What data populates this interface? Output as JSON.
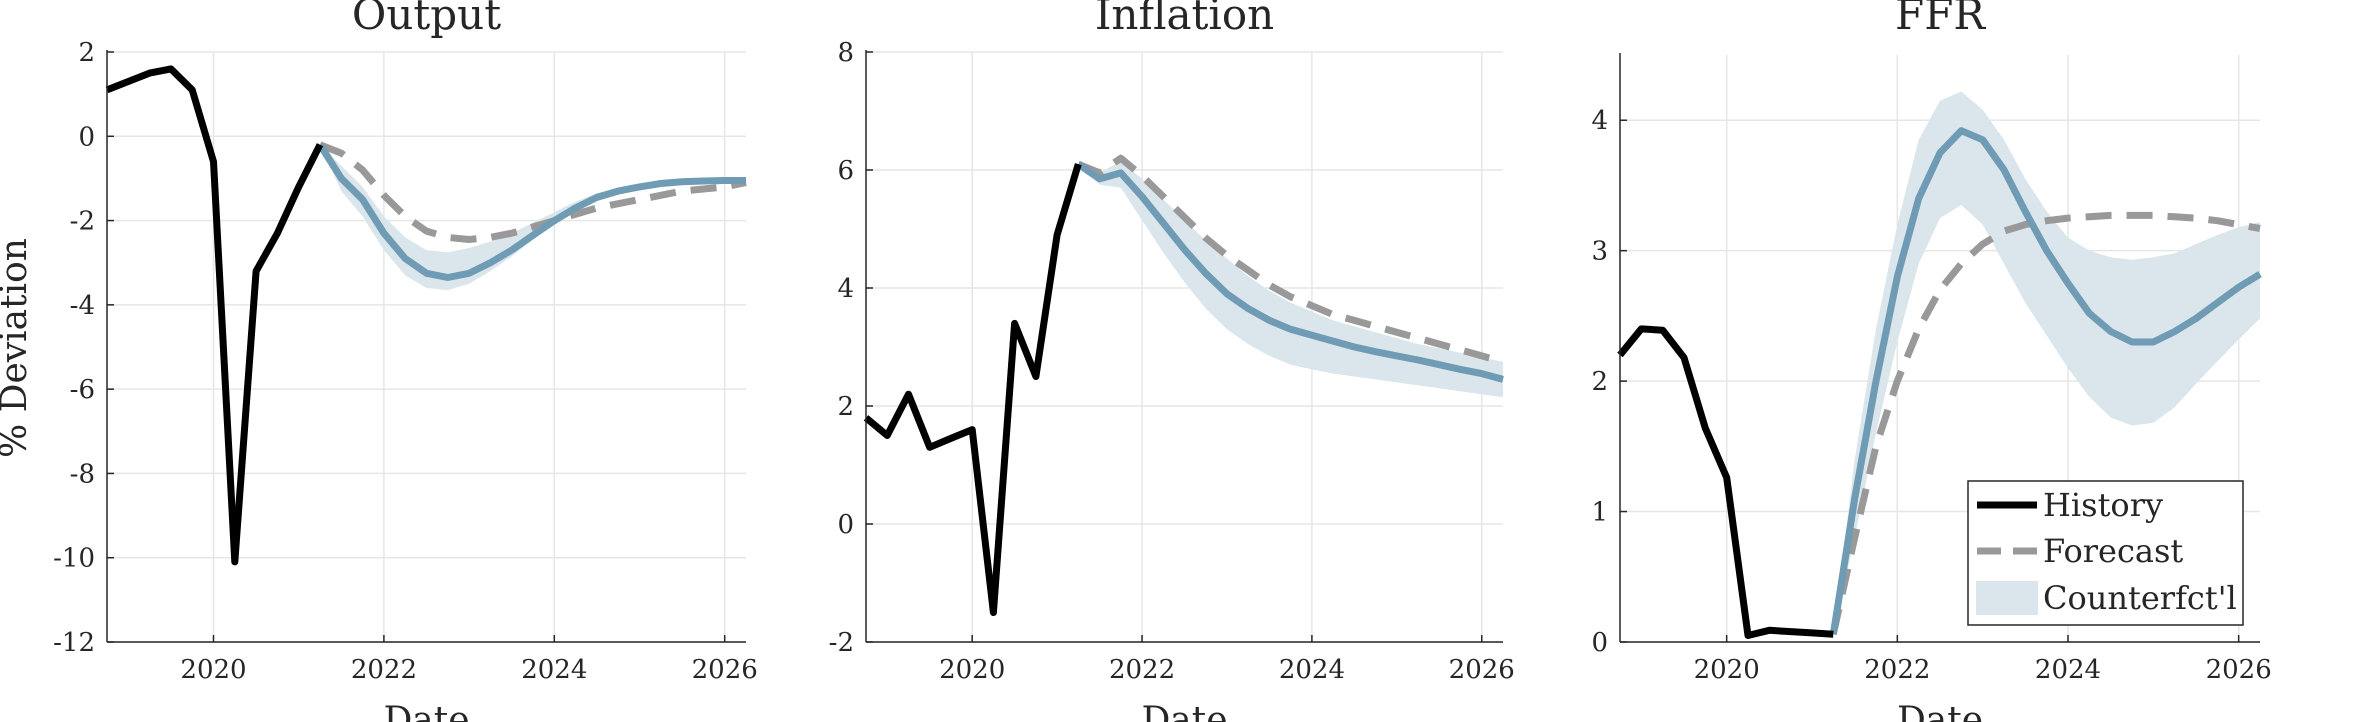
{
  "figure": {
    "ylabel": "% Deviation",
    "colors": {
      "history": "#000000",
      "forecast": "#999999",
      "counterfactual": "#6f9bb4",
      "band": "#dae6ec",
      "grid": "#e6e6e6",
      "axis": "#262626"
    }
  },
  "legend": {
    "placement": "bottom-right of FFR panel",
    "entries": [
      "History",
      "Forecast",
      "Counterfct'l"
    ]
  },
  "chart_data": [
    {
      "type": "line",
      "title": "Output",
      "xlabel": "Date",
      "ylabel": "% Deviation",
      "xlim": [
        2018.75,
        2026.25
      ],
      "ylim": [
        -12,
        2
      ],
      "xticks": [
        2020,
        2022,
        2024,
        2026
      ],
      "xtick_labels": [
        "2020",
        "2022",
        "2024",
        "2026"
      ],
      "yticks": [
        -12,
        -10,
        -8,
        -6,
        -4,
        -2,
        0,
        2
      ],
      "ytick_labels": [
        "-12",
        "-10",
        "-8",
        "-6",
        "-4",
        "-2",
        "0",
        "2"
      ],
      "grid": true,
      "series": [
        {
          "name": "History",
          "style": "solid-black",
          "x": [
            2018.75,
            2019.0,
            2019.25,
            2019.5,
            2019.75,
            2020.0,
            2020.25,
            2020.5,
            2020.75,
            2021.0,
            2021.25
          ],
          "y": [
            1.1,
            1.3,
            1.5,
            1.6,
            1.1,
            -0.6,
            -10.1,
            -3.2,
            -2.3,
            -1.2,
            -0.2
          ]
        },
        {
          "name": "Forecast",
          "style": "dashed-gray",
          "x": [
            2021.25,
            2021.5,
            2021.75,
            2022.0,
            2022.25,
            2022.5,
            2022.75,
            2023.0,
            2023.25,
            2023.5,
            2023.75,
            2024.0,
            2024.25,
            2024.5,
            2024.75,
            2025.0,
            2025.25,
            2025.5,
            2025.75,
            2026.0,
            2026.25
          ],
          "y": [
            -0.2,
            -0.4,
            -0.8,
            -1.4,
            -1.9,
            -2.25,
            -2.4,
            -2.45,
            -2.4,
            -2.3,
            -2.15,
            -2.0,
            -1.85,
            -1.7,
            -1.6,
            -1.5,
            -1.4,
            -1.3,
            -1.25,
            -1.2,
            -1.1
          ]
        },
        {
          "name": "Counterfct'l",
          "style": "solid-blue",
          "x": [
            2021.25,
            2021.5,
            2021.75,
            2022.0,
            2022.25,
            2022.5,
            2022.75,
            2023.0,
            2023.25,
            2023.5,
            2023.75,
            2024.0,
            2024.25,
            2024.5,
            2024.75,
            2025.0,
            2025.25,
            2025.5,
            2025.75,
            2026.0,
            2026.25
          ],
          "y": [
            -0.2,
            -1.0,
            -1.5,
            -2.3,
            -2.9,
            -3.25,
            -3.35,
            -3.25,
            -3.0,
            -2.7,
            -2.35,
            -2.0,
            -1.7,
            -1.45,
            -1.3,
            -1.2,
            -1.12,
            -1.08,
            -1.06,
            -1.05,
            -1.05
          ]
        }
      ],
      "band": {
        "name": "Counterfct'l",
        "x": [
          2021.25,
          2021.5,
          2021.75,
          2022.0,
          2022.25,
          2022.5,
          2022.75,
          2023.0,
          2023.25,
          2023.5,
          2023.75,
          2024.0,
          2024.25,
          2024.5,
          2024.75,
          2025.0,
          2025.25,
          2025.5,
          2025.75,
          2026.0,
          2026.25
        ],
        "lower": [
          -0.2,
          -1.3,
          -1.9,
          -2.7,
          -3.3,
          -3.6,
          -3.65,
          -3.5,
          -3.2,
          -2.85,
          -2.45,
          -2.1,
          -1.8,
          -1.5,
          -1.35,
          -1.25,
          -1.15,
          -1.1,
          -1.08,
          -1.06,
          -1.06
        ],
        "upper": [
          -0.2,
          -0.7,
          -1.2,
          -1.9,
          -2.4,
          -2.7,
          -2.75,
          -2.65,
          -2.5,
          -2.3,
          -2.05,
          -1.8,
          -1.55,
          -1.35,
          -1.22,
          -1.14,
          -1.08,
          -1.05,
          -1.03,
          -1.02,
          -1.02
        ]
      }
    },
    {
      "type": "line",
      "title": "Inflation",
      "xlabel": "Date",
      "xlim": [
        2018.75,
        2026.25
      ],
      "ylim": [
        -2,
        8
      ],
      "xticks": [
        2020,
        2022,
        2024,
        2026
      ],
      "xtick_labels": [
        "2020",
        "2022",
        "2024",
        "2026"
      ],
      "yticks": [
        -2,
        0,
        2,
        4,
        6,
        8
      ],
      "ytick_labels": [
        "-2",
        "0",
        "2",
        "4",
        "6",
        "8"
      ],
      "grid": true,
      "series": [
        {
          "name": "History",
          "style": "solid-black",
          "x": [
            2018.75,
            2019.0,
            2019.25,
            2019.5,
            2019.75,
            2020.0,
            2020.25,
            2020.5,
            2020.75,
            2021.0,
            2021.25
          ],
          "y": [
            1.8,
            1.5,
            2.2,
            1.3,
            1.45,
            1.6,
            -1.5,
            3.4,
            2.5,
            4.9,
            6.1
          ]
        },
        {
          "name": "Forecast",
          "style": "dashed-gray",
          "x": [
            2021.25,
            2021.5,
            2021.75,
            2022.0,
            2022.25,
            2022.5,
            2022.75,
            2023.0,
            2023.25,
            2023.5,
            2023.75,
            2024.0,
            2024.25,
            2024.5,
            2024.75,
            2025.0,
            2025.25,
            2025.5,
            2025.75,
            2026.0,
            2026.25
          ],
          "y": [
            6.1,
            5.95,
            6.2,
            5.9,
            5.55,
            5.2,
            4.85,
            4.55,
            4.3,
            4.05,
            3.85,
            3.7,
            3.55,
            3.45,
            3.35,
            3.25,
            3.15,
            3.05,
            2.95,
            2.85,
            2.75
          ]
        },
        {
          "name": "Counterfct'l",
          "style": "solid-blue",
          "x": [
            2021.25,
            2021.5,
            2021.75,
            2022.0,
            2022.25,
            2022.5,
            2022.75,
            2023.0,
            2023.25,
            2023.5,
            2023.75,
            2024.0,
            2024.25,
            2024.5,
            2024.75,
            2025.0,
            2025.25,
            2025.5,
            2025.75,
            2026.0,
            2026.25
          ],
          "y": [
            6.1,
            5.85,
            5.95,
            5.55,
            5.1,
            4.65,
            4.25,
            3.9,
            3.65,
            3.45,
            3.3,
            3.2,
            3.1,
            3.0,
            2.92,
            2.85,
            2.78,
            2.7,
            2.62,
            2.55,
            2.45
          ]
        }
      ],
      "band": {
        "name": "Counterfct'l",
        "x": [
          2021.25,
          2021.5,
          2021.75,
          2022.0,
          2022.25,
          2022.5,
          2022.75,
          2023.0,
          2023.25,
          2023.5,
          2023.75,
          2024.0,
          2024.25,
          2024.5,
          2024.75,
          2025.0,
          2025.25,
          2025.5,
          2025.75,
          2026.0,
          2026.25
        ],
        "lower": [
          6.1,
          5.75,
          5.7,
          5.15,
          4.6,
          4.1,
          3.65,
          3.3,
          3.05,
          2.85,
          2.7,
          2.62,
          2.55,
          2.5,
          2.45,
          2.4,
          2.35,
          2.3,
          2.25,
          2.2,
          2.15
        ],
        "upper": [
          6.1,
          5.95,
          6.15,
          5.85,
          5.5,
          5.15,
          4.8,
          4.5,
          4.2,
          3.95,
          3.75,
          3.6,
          3.45,
          3.35,
          3.25,
          3.15,
          3.05,
          2.98,
          2.9,
          2.82,
          2.75
        ]
      }
    },
    {
      "type": "line",
      "title": "FFR",
      "xlabel": "Date",
      "xlim": [
        2018.75,
        2026.25
      ],
      "ylim": [
        0,
        4.5
      ],
      "xticks": [
        2020,
        2022,
        2024,
        2026
      ],
      "xtick_labels": [
        "2020",
        "2022",
        "2024",
        "2026"
      ],
      "yticks": [
        0,
        1,
        2,
        3,
        4
      ],
      "ytick_labels": [
        "0",
        "1",
        "2",
        "3",
        "4"
      ],
      "grid": true,
      "legend": true,
      "series": [
        {
          "name": "History",
          "style": "solid-black",
          "x": [
            2018.75,
            2019.0,
            2019.25,
            2019.5,
            2019.75,
            2020.0,
            2020.25,
            2020.5,
            2020.75,
            2021.0,
            2021.25
          ],
          "y": [
            2.2,
            2.4,
            2.39,
            2.18,
            1.64,
            1.26,
            0.05,
            0.09,
            0.08,
            0.07,
            0.06
          ]
        },
        {
          "name": "Forecast",
          "style": "dashed-gray",
          "x": [
            2021.25,
            2021.5,
            2021.75,
            2022.0,
            2022.25,
            2022.5,
            2022.75,
            2023.0,
            2023.25,
            2023.5,
            2023.75,
            2024.0,
            2024.25,
            2024.5,
            2024.75,
            2025.0,
            2025.25,
            2025.5,
            2025.75,
            2026.0,
            2026.25
          ],
          "y": [
            0.06,
            0.8,
            1.5,
            2.0,
            2.4,
            2.7,
            2.9,
            3.05,
            3.15,
            3.2,
            3.23,
            3.25,
            3.26,
            3.27,
            3.27,
            3.27,
            3.26,
            3.25,
            3.23,
            3.2,
            3.17
          ]
        },
        {
          "name": "Counterfct'l",
          "style": "solid-blue",
          "x": [
            2021.25,
            2021.5,
            2021.75,
            2022.0,
            2022.25,
            2022.5,
            2022.75,
            2023.0,
            2023.25,
            2023.5,
            2023.75,
            2024.0,
            2024.25,
            2024.5,
            2024.75,
            2025.0,
            2025.25,
            2025.5,
            2025.75,
            2026.0,
            2026.25
          ],
          "y": [
            0.06,
            1.1,
            2.0,
            2.8,
            3.4,
            3.75,
            3.92,
            3.85,
            3.62,
            3.3,
            3.0,
            2.75,
            2.52,
            2.38,
            2.3,
            2.3,
            2.38,
            2.48,
            2.6,
            2.72,
            2.82
          ]
        }
      ],
      "band": {
        "name": "Counterfct'l",
        "x": [
          2021.25,
          2021.5,
          2021.75,
          2022.0,
          2022.25,
          2022.5,
          2022.75,
          2023.0,
          2023.25,
          2023.5,
          2023.75,
          2024.0,
          2024.25,
          2024.5,
          2024.75,
          2025.0,
          2025.25,
          2025.5,
          2025.75,
          2026.0,
          2026.25
        ],
        "lower": [
          0.06,
          0.8,
          1.6,
          2.3,
          2.9,
          3.25,
          3.35,
          3.2,
          2.9,
          2.6,
          2.35,
          2.1,
          1.88,
          1.72,
          1.66,
          1.68,
          1.8,
          1.98,
          2.15,
          2.32,
          2.48
        ],
        "upper": [
          0.06,
          1.4,
          2.4,
          3.2,
          3.85,
          4.15,
          4.22,
          4.08,
          3.85,
          3.55,
          3.3,
          3.1,
          3.0,
          2.95,
          2.93,
          2.95,
          2.98,
          3.05,
          3.12,
          3.18,
          3.22
        ]
      }
    }
  ]
}
